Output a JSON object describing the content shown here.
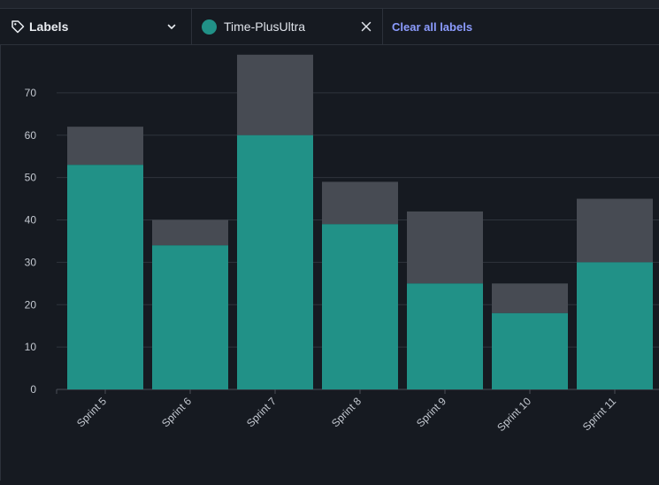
{
  "filter": {
    "dropdown_label": "Labels",
    "selected_label": "Time-PlusUltra",
    "clear_label": "Clear all labels"
  },
  "colors": {
    "labeled": "#219187",
    "total": "#474b53",
    "grid": "#2f343c",
    "tick_text": "#c3c8d0"
  },
  "chart_data": {
    "type": "bar",
    "stacked": true,
    "categories": [
      "Sprint 5",
      "Sprint 6",
      "Sprint 7",
      "Sprint 8",
      "Sprint 9",
      "Sprint 10",
      "Sprint 11"
    ],
    "series": [
      {
        "values": [
          53,
          34,
          60,
          39,
          25,
          18,
          30
        ]
      },
      {
        "values": [
          9,
          6,
          19,
          10,
          17,
          7,
          15
        ]
      }
    ],
    "yticks": [
      0,
      10,
      20,
      30,
      40,
      50,
      60,
      70
    ],
    "ylim": [
      0,
      80
    ],
    "grid": true,
    "title": "",
    "xlabel": "",
    "ylabel": ""
  }
}
